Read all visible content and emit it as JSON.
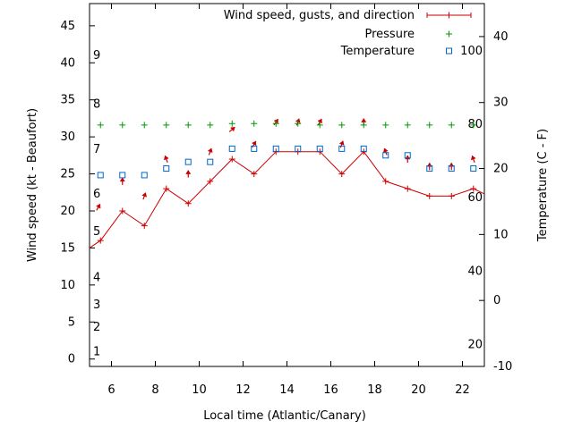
{
  "chart_data": {
    "type": "line",
    "xlabel": "Local time (Atlantic/Canary)",
    "ylabel_left": "Wind speed (kt - Beaufort)",
    "ylabel_right": "Temperature (C - F)",
    "x_ticks": [
      6,
      8,
      10,
      12,
      14,
      16,
      18,
      20,
      22
    ],
    "xlim": [
      5,
      23
    ],
    "y_left_ticks": [
      0,
      5,
      10,
      15,
      20,
      25,
      30,
      35,
      40,
      45
    ],
    "ylim_left": [
      -1,
      48
    ],
    "y_right_ticks": [
      -10,
      0,
      10,
      20,
      30,
      40
    ],
    "ylim_right": [
      -10,
      45
    ],
    "beaufort_labels": [
      {
        "label": "1",
        "y": 1
      },
      {
        "label": "2",
        "y": 4.3
      },
      {
        "label": "3",
        "y": 7.3
      },
      {
        "label": "4",
        "y": 11
      },
      {
        "label": "5",
        "y": 17.2
      },
      {
        "label": "6",
        "y": 22.3
      },
      {
        "label": "7",
        "y": 28.3
      },
      {
        "label": "8",
        "y": 34.4
      },
      {
        "label": "9",
        "y": 41
      }
    ],
    "fahrenheit_labels": [
      {
        "label": "20",
        "y": -6.7
      },
      {
        "label": "40",
        "y": 4.4
      },
      {
        "label": "60",
        "y": 15.6
      },
      {
        "label": "80",
        "y": 26.7
      },
      {
        "label": "100",
        "y": 37.8
      }
    ],
    "legend_position": "top-right",
    "series": [
      {
        "name": "Wind speed, gusts, and direction",
        "axis": "left",
        "style": "line+plus",
        "color": "#cc0000",
        "x": [
          5,
          5.5,
          6.5,
          7.5,
          8.5,
          9.5,
          10.5,
          11.5,
          12.5,
          13.5,
          14.5,
          15.5,
          16.5,
          17.5,
          18.5,
          19.5,
          20.5,
          21.5,
          22.5,
          23
        ],
        "values": [
          15,
          16,
          20,
          18,
          23,
          21,
          24,
          27,
          25,
          28,
          28,
          28,
          25,
          28,
          24,
          23,
          22,
          22,
          23,
          22.3
        ],
        "marker_x": [
          5.5,
          6.5,
          7.5,
          8.5,
          9.5,
          10.5,
          11.5,
          12.5,
          13.5,
          14.5,
          15.5,
          16.5,
          17.5,
          18.5,
          19.5,
          20.5,
          21.5,
          22.5
        ],
        "direction_arrows": [
          {
            "x": 5.4,
            "y": 20.5,
            "dir_deg": 210
          },
          {
            "x": 6.5,
            "y": 24.0,
            "dir_deg": 180
          },
          {
            "x": 7.5,
            "y": 22.0,
            "dir_deg": 200
          },
          {
            "x": 8.5,
            "y": 27.0,
            "dir_deg": 160
          },
          {
            "x": 9.5,
            "y": 25.0,
            "dir_deg": 180
          },
          {
            "x": 10.5,
            "y": 28.0,
            "dir_deg": 200
          },
          {
            "x": 11.5,
            "y": 31.0,
            "dir_deg": 230
          },
          {
            "x": 12.5,
            "y": 29.0,
            "dir_deg": 210
          },
          {
            "x": 13.5,
            "y": 32.0,
            "dir_deg": 215
          },
          {
            "x": 14.5,
            "y": 32.0,
            "dir_deg": 200
          },
          {
            "x": 15.5,
            "y": 32.0,
            "dir_deg": 210
          },
          {
            "x": 16.5,
            "y": 29.0,
            "dir_deg": 200
          },
          {
            "x": 17.5,
            "y": 32.0,
            "dir_deg": 180
          },
          {
            "x": 18.5,
            "y": 28.0,
            "dir_deg": 160
          },
          {
            "x": 19.5,
            "y": 27.0,
            "dir_deg": 180
          },
          {
            "x": 20.5,
            "y": 26.0,
            "dir_deg": 180
          },
          {
            "x": 21.5,
            "y": 26.0,
            "dir_deg": 180
          },
          {
            "x": 22.5,
            "y": 27.0,
            "dir_deg": 160
          }
        ]
      },
      {
        "name": "Pressure",
        "axis": "left",
        "style": "plus",
        "color": "#009900",
        "x": [
          5.5,
          6.5,
          7.5,
          8.5,
          9.5,
          10.5,
          11.5,
          12.5,
          13.5,
          14.5,
          15.5,
          16.5,
          17.5,
          18.5,
          19.5,
          20.5,
          21.5,
          22.5
        ],
        "values": [
          31.6,
          31.6,
          31.6,
          31.6,
          31.6,
          31.6,
          31.8,
          31.8,
          31.8,
          31.8,
          31.6,
          31.6,
          31.6,
          31.6,
          31.6,
          31.6,
          31.6,
          31.6
        ]
      },
      {
        "name": "Temperature",
        "axis": "right",
        "style": "square",
        "color": "#0066cc",
        "x": [
          5.5,
          6.5,
          7.5,
          8.5,
          9.5,
          10.5,
          11.5,
          12.5,
          13.5,
          14.5,
          15.5,
          16.5,
          17.5,
          18.5,
          19.5,
          20.5,
          21.5,
          22.5
        ],
        "values": [
          19,
          19,
          19,
          20,
          21,
          21,
          23,
          23,
          23,
          23,
          23,
          23,
          23,
          22,
          22,
          20,
          20,
          20
        ]
      }
    ]
  }
}
